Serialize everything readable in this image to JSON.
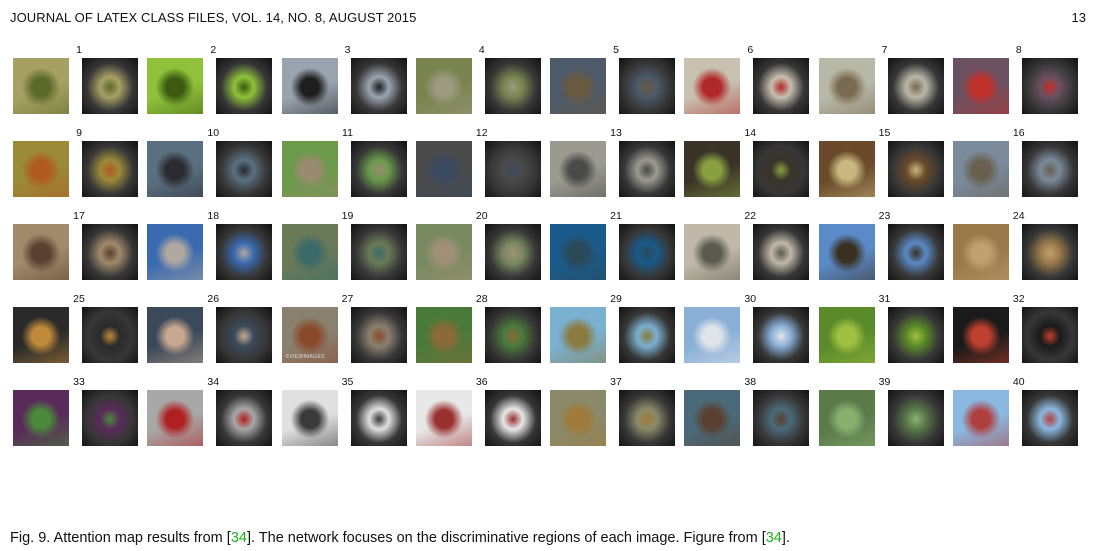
{
  "header": {
    "journal": "JOURNAL OF LATEX CLASS FILES, VOL. 14, NO. 8, AUGUST 2015",
    "page_number": "13"
  },
  "figure": {
    "items": [
      {
        "num": "1",
        "c1": "#a7a064",
        "c2": "#5b6a2a"
      },
      {
        "num": "2",
        "c1": "#8fc23a",
        "c2": "#3d5a12"
      },
      {
        "num": "3",
        "c1": "#9aa4b0",
        "c2": "#1e1e1e"
      },
      {
        "num": "4",
        "c1": "#7a8450",
        "c2": "#9c9a80"
      },
      {
        "num": "5",
        "c1": "#4c5a6a",
        "c2": "#6a5a40"
      },
      {
        "num": "6",
        "c1": "#c8c0b0",
        "c2": "#b02828"
      },
      {
        "num": "7",
        "c1": "#b8b8a8",
        "c2": "#7a6a50"
      },
      {
        "num": "8",
        "c1": "#6a5060",
        "c2": "#c0302a"
      },
      {
        "num": "9",
        "c1": "#9a8a3a",
        "c2": "#b05a20"
      },
      {
        "num": "10",
        "c1": "#5a7080",
        "c2": "#2a2a30"
      },
      {
        "num": "11",
        "c1": "#6a9a4a",
        "c2": "#9a8a70"
      },
      {
        "num": "12",
        "c1": "#4a4a4a",
        "c2": "#3a4a60"
      },
      {
        "num": "13",
        "c1": "#9a9a90",
        "c2": "#4a4a48"
      },
      {
        "num": "14",
        "c1": "#3a3428",
        "c2": "#8aa040"
      },
      {
        "num": "15",
        "c1": "#6a4a2a",
        "c2": "#c8b880"
      },
      {
        "num": "16",
        "c1": "#7a8a9a",
        "c2": "#6a6050"
      },
      {
        "num": "17",
        "c1": "#a08a6a",
        "c2": "#5a4030"
      },
      {
        "num": "18",
        "c1": "#3a6ab0",
        "c2": "#b0a8a0"
      },
      {
        "num": "19",
        "c1": "#6a7a58",
        "c2": "#3a6a6a"
      },
      {
        "num": "20",
        "c1": "#7a8a60",
        "c2": "#a09078"
      },
      {
        "num": "21",
        "c1": "#1a5a8a",
        "c2": "#2a4a5a"
      },
      {
        "num": "22",
        "c1": "#c0b8a8",
        "c2": "#5a5a50"
      },
      {
        "num": "23",
        "c1": "#5a8ac8",
        "c2": "#3a3020"
      },
      {
        "num": "24",
        "c1": "#9a7a4a",
        "c2": "#c0a070"
      },
      {
        "num": "25",
        "c1": "#2a2a2a",
        "c2": "#c08a3a"
      },
      {
        "num": "26",
        "c1": "#3a4a5a",
        "c2": "#c8a890"
      },
      {
        "num": "27",
        "c1": "#8a8070",
        "c2": "#8a4a2a"
      },
      {
        "num": "28",
        "c1": "#4a7a3a",
        "c2": "#8a6a3a"
      },
      {
        "num": "29",
        "c1": "#7ab0d0",
        "c2": "#8a7a40"
      },
      {
        "num": "30",
        "c1": "#8ab0d8",
        "c2": "#e0e4ea"
      },
      {
        "num": "31",
        "c1": "#5a8a2a",
        "c2": "#a0c040"
      },
      {
        "num": "32",
        "c1": "#1a1a1a",
        "c2": "#c04030"
      },
      {
        "num": "33",
        "c1": "#5a2a5a",
        "c2": "#4a8a3a"
      },
      {
        "num": "34",
        "c1": "#a8a8a8",
        "c2": "#b02020"
      },
      {
        "num": "35",
        "c1": "#e0e0e0",
        "c2": "#3a3a3a"
      },
      {
        "num": "36",
        "c1": "#e8e8e8",
        "c2": "#9a3030"
      },
      {
        "num": "37",
        "c1": "#8a8a6a",
        "c2": "#a07a3a"
      },
      {
        "num": "38",
        "c1": "#4a6a7a",
        "c2": "#5a4030"
      },
      {
        "num": "39",
        "c1": "#5a7a4a",
        "c2": "#8ab070"
      },
      {
        "num": "40",
        "c1": "#8ab8e0",
        "c2": "#b04040"
      }
    ],
    "watermark": "©VIEWIMAGES",
    "caption": {
      "prefix": "Fig. 9. Attention map results from [",
      "ref1": "34",
      "middle": "]. The network focuses on the discriminative regions of each image. Figure from [",
      "ref2": "34",
      "suffix": "]."
    }
  }
}
